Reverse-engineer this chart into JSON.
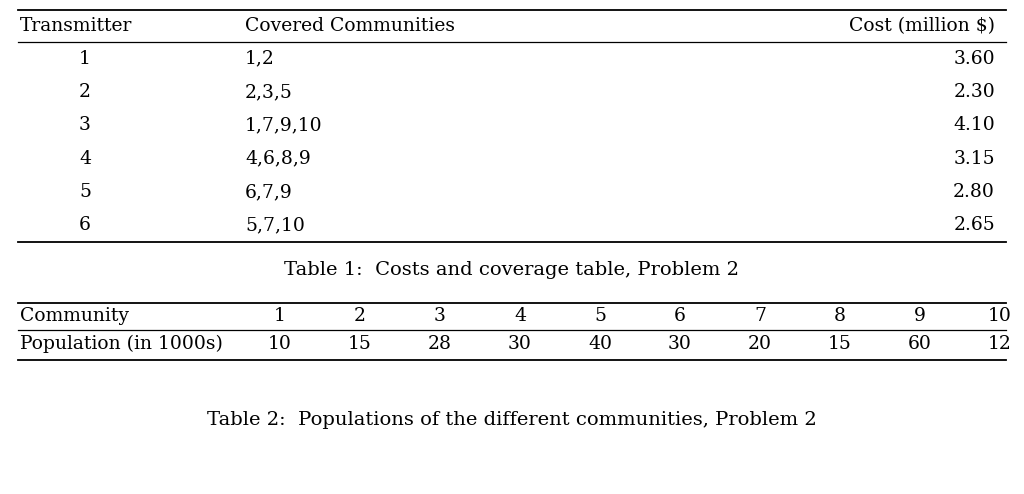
{
  "table1_headers": [
    "Transmitter",
    "Covered Communities",
    "Cost (million $)"
  ],
  "table1_rows": [
    [
      "1",
      "1,2",
      "3.60"
    ],
    [
      "2",
      "2,3,5",
      "2.30"
    ],
    [
      "3",
      "1,7,9,10",
      "4.10"
    ],
    [
      "4",
      "4,6,8,9",
      "3.15"
    ],
    [
      "5",
      "6,7,9",
      "2.80"
    ],
    [
      "6",
      "5,7,10",
      "2.65"
    ]
  ],
  "table1_caption": "Table 1:  Costs and coverage table, Problem 2",
  "table2_row1": [
    "Community",
    "1",
    "2",
    "3",
    "4",
    "5",
    "6",
    "7",
    "8",
    "9",
    "10"
  ],
  "table2_row2": [
    "Population (in 1000s)",
    "10",
    "15",
    "28",
    "30",
    "40",
    "30",
    "20",
    "15",
    "60",
    "12"
  ],
  "table2_caption": "Table 2:  Populations of the different communities, Problem 2",
  "bg_color": "#ffffff",
  "text_color": "#000000",
  "font_size": 13.5,
  "caption_font_size": 14.0,
  "fig_width": 10.24,
  "fig_height": 4.94,
  "dpi": 100
}
